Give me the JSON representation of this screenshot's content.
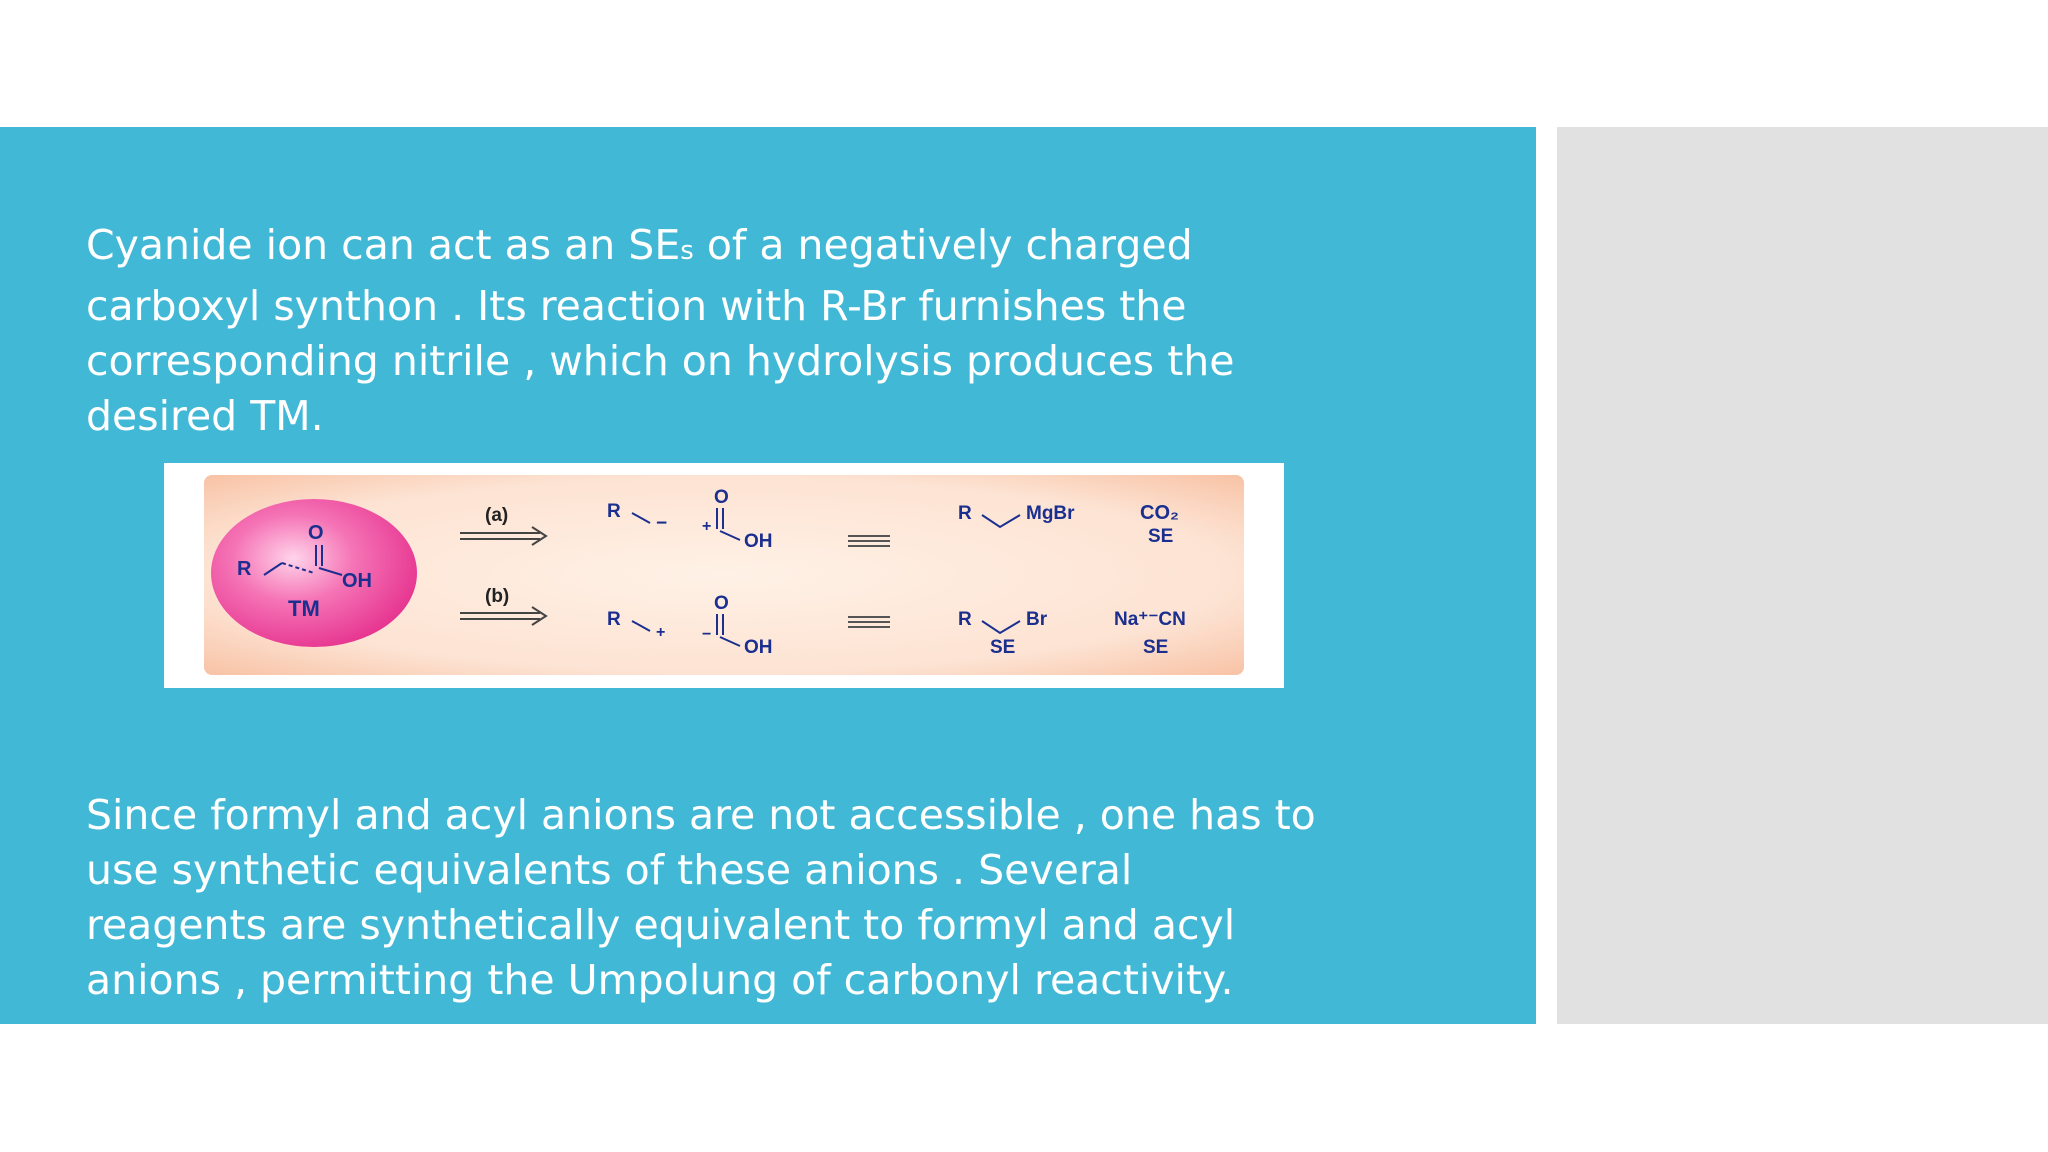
{
  "paragraph1": {
    "part1": "Cyanide ion can act as an SE",
    "subscript": "s",
    "part2": " of a negatively charged carboxyl synthon . Its reaction with R-Br furnishes the corresponding nitrile , which on hydrolysis produces the desired TM."
  },
  "paragraph2": "Since formyl and acyl anions are not accessible , one has to use synthetic equivalents of these anions . Several reagents are synthetically equivalent to formyl and acyl anions , permitting the Umpolung of carbonyl reactivity.",
  "scheme": {
    "target": {
      "r": "R",
      "o": "O",
      "oh": "OH",
      "tm": "TM"
    },
    "route_a": {
      "label": "(a)",
      "synthon_r": "R",
      "synthon_minus": "−",
      "carbonyl_o": "O",
      "carbonyl_plus": "+",
      "carbonyl_oh": "OH",
      "reagent_r": "R",
      "reagent_mgbr": "MgBr",
      "reagent_co2": "CO₂",
      "se_label": "SE"
    },
    "route_b": {
      "label": "(b)",
      "synthon_r": "R",
      "synthon_plus": "+",
      "carbonyl_o": "O",
      "carbonyl_minus": "−",
      "carbonyl_oh": "OH",
      "reagent_r": "R",
      "reagent_br": "Br",
      "reagent_se": "SE",
      "reagent_nacn": "Na⁺⁻CN",
      "nacn_se": "SE"
    },
    "colors": {
      "background": "#fde2d3",
      "circle": "#ec4c9f",
      "label": "#1b2f8f"
    }
  }
}
